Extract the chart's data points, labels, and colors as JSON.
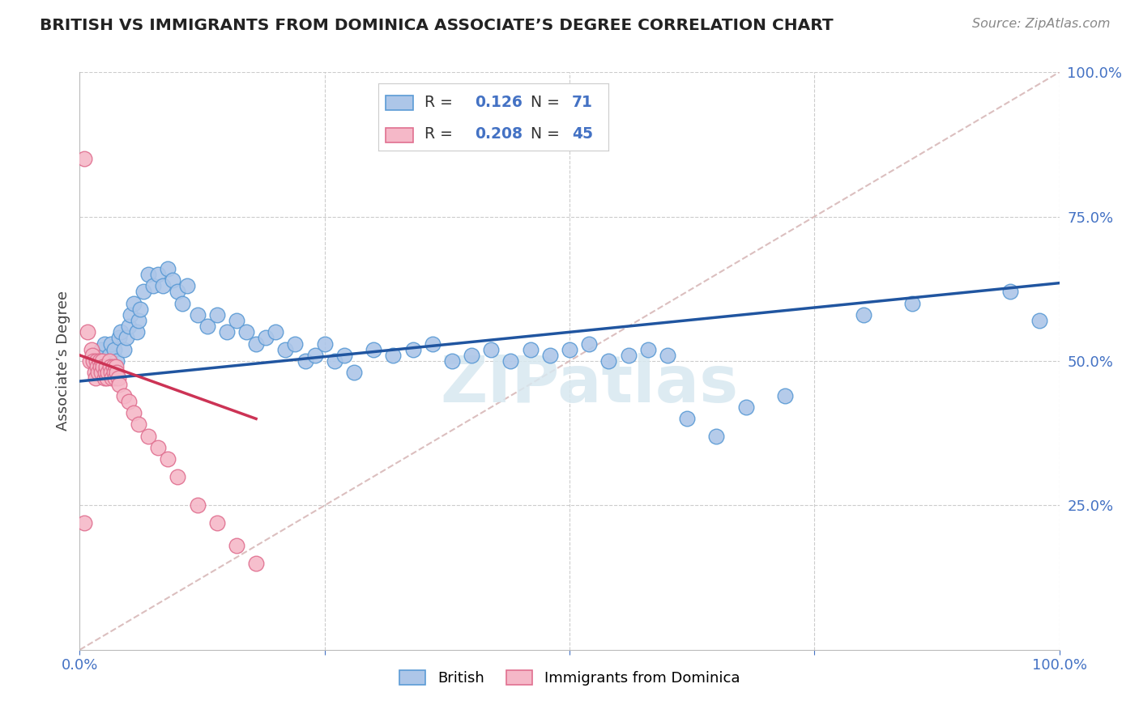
{
  "title": "BRITISH VS IMMIGRANTS FROM DOMINICA ASSOCIATE’S DEGREE CORRELATION CHART",
  "source": "Source: ZipAtlas.com",
  "ylabel": "Associate’s Degree",
  "xlim": [
    0.0,
    100.0
  ],
  "ylim": [
    0.0,
    100.0
  ],
  "british_color": "#adc6e8",
  "dominica_color": "#f5b8c8",
  "british_edge": "#5b9bd5",
  "dominica_edge": "#e07090",
  "trend_british_color": "#2055a0",
  "trend_dominica_color": "#cc3355",
  "diag_color": "#d8b8b8",
  "legend_r_british": "0.126",
  "legend_n_british": "71",
  "legend_r_dominica": "0.208",
  "legend_n_dominica": "45",
  "watermark": "ZIPatlas",
  "label_color": "#4472c4",
  "british_x": [
    1.5,
    1.8,
    2.0,
    2.2,
    2.5,
    2.8,
    3.0,
    3.2,
    3.5,
    3.8,
    4.0,
    4.2,
    4.5,
    4.8,
    5.0,
    5.2,
    5.5,
    5.8,
    6.0,
    6.2,
    6.5,
    7.0,
    7.5,
    8.0,
    8.5,
    9.0,
    9.5,
    10.0,
    10.5,
    11.0,
    12.0,
    13.0,
    14.0,
    15.0,
    16.0,
    17.0,
    18.0,
    19.0,
    20.0,
    21.0,
    22.0,
    23.0,
    24.0,
    25.0,
    26.0,
    27.0,
    28.0,
    30.0,
    32.0,
    34.0,
    36.0,
    38.0,
    40.0,
    42.0,
    44.0,
    46.0,
    48.0,
    50.0,
    52.0,
    54.0,
    56.0,
    58.0,
    60.0,
    62.0,
    65.0,
    68.0,
    72.0,
    80.0,
    85.0,
    95.0,
    98.0
  ],
  "british_y": [
    50.0,
    51.0,
    49.0,
    52.0,
    53.0,
    50.0,
    51.0,
    53.0,
    52.0,
    50.0,
    54.0,
    55.0,
    52.0,
    54.0,
    56.0,
    58.0,
    60.0,
    55.0,
    57.0,
    59.0,
    62.0,
    65.0,
    63.0,
    65.0,
    63.0,
    66.0,
    64.0,
    62.0,
    60.0,
    63.0,
    58.0,
    56.0,
    58.0,
    55.0,
    57.0,
    55.0,
    53.0,
    54.0,
    55.0,
    52.0,
    53.0,
    50.0,
    51.0,
    53.0,
    50.0,
    51.0,
    48.0,
    52.0,
    51.0,
    52.0,
    53.0,
    50.0,
    51.0,
    52.0,
    50.0,
    52.0,
    51.0,
    52.0,
    53.0,
    50.0,
    51.0,
    52.0,
    51.0,
    40.0,
    37.0,
    42.0,
    44.0,
    58.0,
    60.0,
    62.0,
    57.0
  ],
  "dominica_x": [
    0.5,
    0.8,
    1.0,
    1.2,
    1.3,
    1.4,
    1.5,
    1.6,
    1.7,
    1.8,
    1.9,
    2.0,
    2.1,
    2.2,
    2.3,
    2.4,
    2.5,
    2.6,
    2.7,
    2.8,
    2.9,
    3.0,
    3.1,
    3.2,
    3.3,
    3.4,
    3.5,
    3.6,
    3.7,
    3.8,
    3.9,
    4.0,
    4.5,
    5.0,
    5.5,
    6.0,
    7.0,
    8.0,
    9.0,
    10.0,
    12.0,
    14.0,
    16.0,
    18.0,
    0.5
  ],
  "dominica_y": [
    85.0,
    55.0,
    50.0,
    52.0,
    51.0,
    50.0,
    48.0,
    47.0,
    50.0,
    49.0,
    48.0,
    50.0,
    49.0,
    48.0,
    50.0,
    49.0,
    47.0,
    48.0,
    49.0,
    47.0,
    48.0,
    50.0,
    49.0,
    48.0,
    47.0,
    49.0,
    48.0,
    47.0,
    49.0,
    48.0,
    47.0,
    46.0,
    44.0,
    43.0,
    41.0,
    39.0,
    37.0,
    35.0,
    33.0,
    30.0,
    25.0,
    22.0,
    18.0,
    15.0,
    22.0
  ],
  "trend_british_x0": 0.0,
  "trend_british_y0": 46.5,
  "trend_british_x1": 100.0,
  "trend_british_y1": 63.5,
  "trend_dominica_x0": 0.0,
  "trend_dominica_y0": 51.0,
  "trend_dominica_x1": 18.0,
  "trend_dominica_y1": 40.0
}
